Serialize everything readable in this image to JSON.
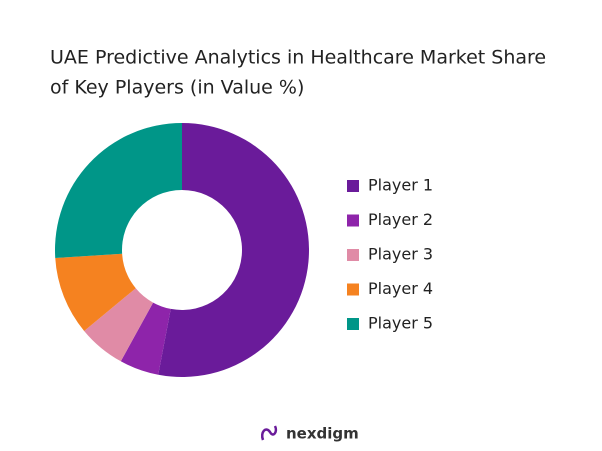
{
  "chart_data": {
    "type": "donut",
    "title": [
      "UAE Predictive Analytics in Healthcare Market Share",
      "of Key Players (in Value %)"
    ],
    "series": [
      {
        "name": "Player 1",
        "color": "#6a1b9a",
        "values": [
          53
        ]
      },
      {
        "name": "Player 2",
        "color": "#8e24aa",
        "values": [
          5
        ]
      },
      {
        "name": "Player 3",
        "color": "#e08ba6",
        "values": [
          6
        ]
      },
      {
        "name": "Player 4",
        "color": "#f58220",
        "values": [
          10
        ]
      },
      {
        "name": "Player 5",
        "color": "#009688",
        "values": [
          26
        ]
      }
    ],
    "legend": "right"
  },
  "brand": "nexdigm"
}
